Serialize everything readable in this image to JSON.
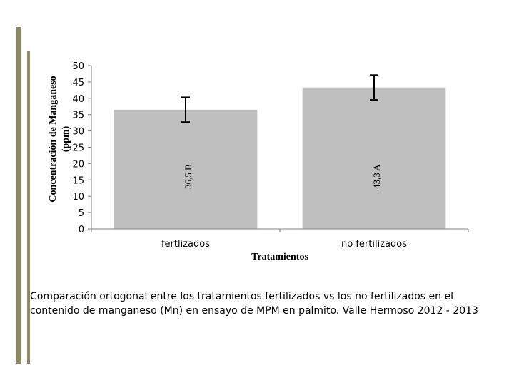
{
  "chart_data": {
    "type": "bar",
    "categories": [
      "fertlizados",
      "no fertilizados"
    ],
    "values": [
      36.5,
      43.3
    ],
    "error": [
      3.8,
      3.8
    ],
    "data_labels": [
      "36,5 B",
      "43,3 A"
    ],
    "title": "",
    "xlabel": "Tratamientos",
    "ylabel": "Concentración de Manganeso (ppm)",
    "ylim": [
      0,
      50
    ],
    "yticks": [
      0,
      5,
      10,
      15,
      20,
      25,
      30,
      35,
      40,
      45,
      50
    ],
    "bar_color": "#bfbfbf",
    "grid": false,
    "legend": "none"
  },
  "caption": "Comparación ortogonal entre los tratamientos fertilizados vs los no fertilizados en el contenido de manganeso (Mn) en ensayo de MPM en palmito. Valle Hermoso 2012 - 2013",
  "colors": {
    "accent_bar": "#8a8a66"
  }
}
